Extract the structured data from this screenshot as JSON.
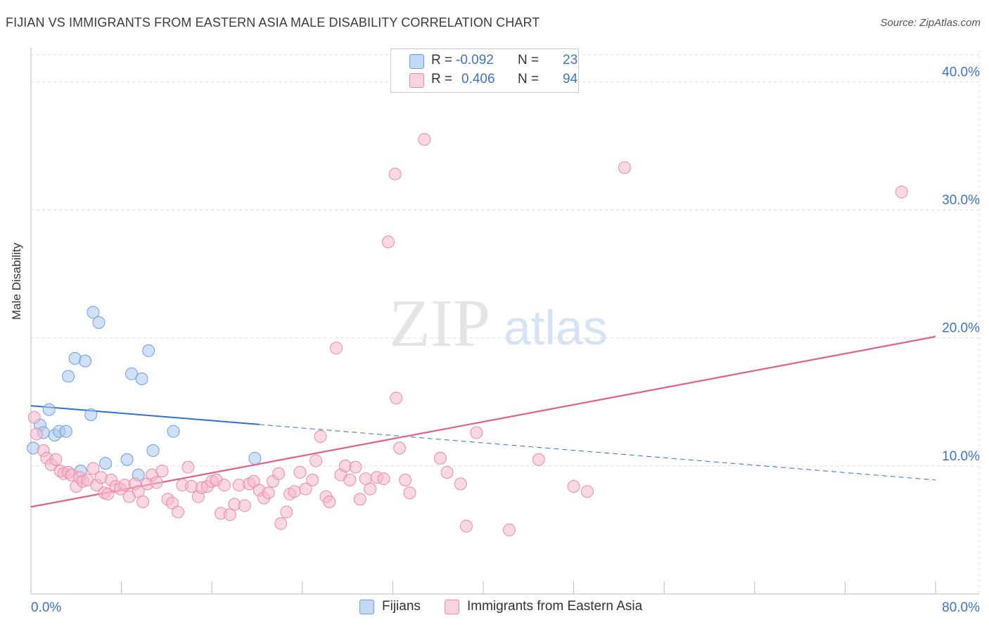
{
  "header": {
    "title": "FIJIAN VS IMMIGRANTS FROM EASTERN ASIA MALE DISABILITY CORRELATION CHART",
    "source": "Source: ZipAtlas.com"
  },
  "legend": {
    "rows": [
      {
        "r_label": "R =",
        "r_value": "-0.092",
        "n_label": "N =",
        "n_value": "23",
        "color": "#a9c8f0"
      },
      {
        "r_label": "R =",
        "r_value": "0.406",
        "n_label": "N =",
        "n_value": "94",
        "color": "#f6b8cb"
      }
    ]
  },
  "bottom_legend": {
    "items": [
      {
        "label": "Fijians",
        "color": "#a9c8f0"
      },
      {
        "label": "Immigrants from Eastern Asia",
        "color": "#f6b8cb"
      }
    ]
  },
  "watermark": {
    "zip": "ZIP",
    "atlas": "atlas"
  },
  "chart_data": {
    "type": "scatter",
    "title": "FIJIAN VS IMMIGRANTS FROM EASTERN ASIA MALE DISABILITY CORRELATION CHART",
    "xlabel": "",
    "ylabel": "Male Disability",
    "xlim": [
      0,
      80
    ],
    "ylim": [
      0,
      42
    ],
    "x_tick_labels": [
      "0.0%",
      "80.0%"
    ],
    "y_ticks": [
      10,
      20,
      30,
      40
    ],
    "y_tick_labels": [
      "10.0%",
      "20.0%",
      "30.0%",
      "40.0%"
    ],
    "grid": true,
    "series": [
      {
        "name": "Fijians",
        "color": "#a9c8f0",
        "edge": "#6a9ee0",
        "line_color": "#2f6fcf",
        "points": [
          [
            0.2,
            11.4
          ],
          [
            0.8,
            13.2
          ],
          [
            1.1,
            12.6
          ],
          [
            1.6,
            14.4
          ],
          [
            2.1,
            12.4
          ],
          [
            2.5,
            12.7
          ],
          [
            3.1,
            12.7
          ],
          [
            3.3,
            17.0
          ],
          [
            3.9,
            18.4
          ],
          [
            4.4,
            9.6
          ],
          [
            4.8,
            18.2
          ],
          [
            5.3,
            14.0
          ],
          [
            5.5,
            22.0
          ],
          [
            6.0,
            21.2
          ],
          [
            6.6,
            10.2
          ],
          [
            8.5,
            10.5
          ],
          [
            8.9,
            17.2
          ],
          [
            9.5,
            9.3
          ],
          [
            9.8,
            16.8
          ],
          [
            10.4,
            19.0
          ],
          [
            10.8,
            11.2
          ],
          [
            12.6,
            12.7
          ],
          [
            19.8,
            10.6
          ]
        ],
        "trend": {
          "x0": 0,
          "y0": 14.7,
          "x_solid_end": 20.2,
          "x1": 80,
          "y1": 8.9
        }
      },
      {
        "name": "Immigrants from Eastern Asia",
        "color": "#f6b8cb",
        "edge": "#e98aa8",
        "line_color": "#e0608b",
        "points": [
          [
            0.3,
            13.8
          ],
          [
            0.5,
            12.5
          ],
          [
            1.1,
            11.2
          ],
          [
            1.4,
            10.6
          ],
          [
            1.8,
            10.1
          ],
          [
            2.2,
            10.5
          ],
          [
            2.6,
            9.6
          ],
          [
            2.9,
            9.4
          ],
          [
            3.3,
            9.5
          ],
          [
            3.6,
            9.3
          ],
          [
            4.0,
            8.4
          ],
          [
            4.3,
            9.1
          ],
          [
            4.6,
            8.8
          ],
          [
            5.0,
            8.9
          ],
          [
            5.5,
            9.8
          ],
          [
            5.8,
            8.5
          ],
          [
            6.2,
            9.1
          ],
          [
            6.5,
            7.9
          ],
          [
            6.8,
            7.8
          ],
          [
            7.1,
            8.9
          ],
          [
            7.5,
            8.4
          ],
          [
            7.9,
            8.2
          ],
          [
            8.3,
            8.5
          ],
          [
            8.7,
            7.6
          ],
          [
            9.2,
            8.6
          ],
          [
            9.5,
            8.0
          ],
          [
            9.9,
            7.2
          ],
          [
            10.3,
            8.6
          ],
          [
            10.7,
            9.3
          ],
          [
            11.1,
            8.7
          ],
          [
            11.6,
            9.6
          ],
          [
            12.1,
            7.4
          ],
          [
            12.5,
            7.1
          ],
          [
            13.0,
            6.4
          ],
          [
            13.4,
            8.5
          ],
          [
            13.9,
            9.9
          ],
          [
            14.2,
            8.4
          ],
          [
            14.8,
            7.6
          ],
          [
            15.1,
            8.3
          ],
          [
            15.6,
            8.4
          ],
          [
            16.0,
            8.8
          ],
          [
            16.4,
            8.9
          ],
          [
            16.8,
            6.3
          ],
          [
            17.1,
            8.5
          ],
          [
            17.6,
            6.2
          ],
          [
            18.0,
            7.0
          ],
          [
            18.4,
            8.5
          ],
          [
            18.9,
            6.9
          ],
          [
            19.3,
            8.6
          ],
          [
            19.7,
            8.8
          ],
          [
            20.2,
            8.1
          ],
          [
            20.6,
            7.5
          ],
          [
            21.0,
            7.9
          ],
          [
            21.4,
            8.8
          ],
          [
            21.9,
            9.4
          ],
          [
            22.1,
            5.5
          ],
          [
            22.6,
            6.4
          ],
          [
            22.9,
            7.8
          ],
          [
            23.3,
            8.0
          ],
          [
            23.8,
            9.5
          ],
          [
            24.3,
            8.2
          ],
          [
            24.9,
            8.9
          ],
          [
            25.2,
            10.4
          ],
          [
            25.6,
            12.3
          ],
          [
            26.1,
            7.6
          ],
          [
            26.4,
            7.2
          ],
          [
            27.0,
            19.2
          ],
          [
            27.4,
            9.3
          ],
          [
            27.8,
            10.0
          ],
          [
            28.2,
            8.9
          ],
          [
            28.7,
            9.9
          ],
          [
            29.1,
            7.4
          ],
          [
            29.6,
            9.0
          ],
          [
            30.0,
            8.2
          ],
          [
            30.6,
            9.1
          ],
          [
            31.2,
            9.0
          ],
          [
            31.6,
            27.5
          ],
          [
            32.2,
            32.8
          ],
          [
            32.3,
            15.3
          ],
          [
            32.6,
            11.4
          ],
          [
            33.1,
            8.9
          ],
          [
            33.5,
            7.9
          ],
          [
            34.8,
            35.5
          ],
          [
            36.2,
            10.6
          ],
          [
            36.8,
            9.5
          ],
          [
            38.0,
            8.6
          ],
          [
            38.5,
            5.3
          ],
          [
            39.4,
            12.6
          ],
          [
            42.3,
            5.0
          ],
          [
            44.9,
            10.5
          ],
          [
            48.0,
            8.4
          ],
          [
            49.2,
            8.0
          ],
          [
            52.5,
            33.3
          ],
          [
            77.0,
            31.4
          ]
        ],
        "trend": {
          "x0": 0,
          "y0": 6.8,
          "x1": 80,
          "y1": 20.1
        }
      }
    ]
  }
}
